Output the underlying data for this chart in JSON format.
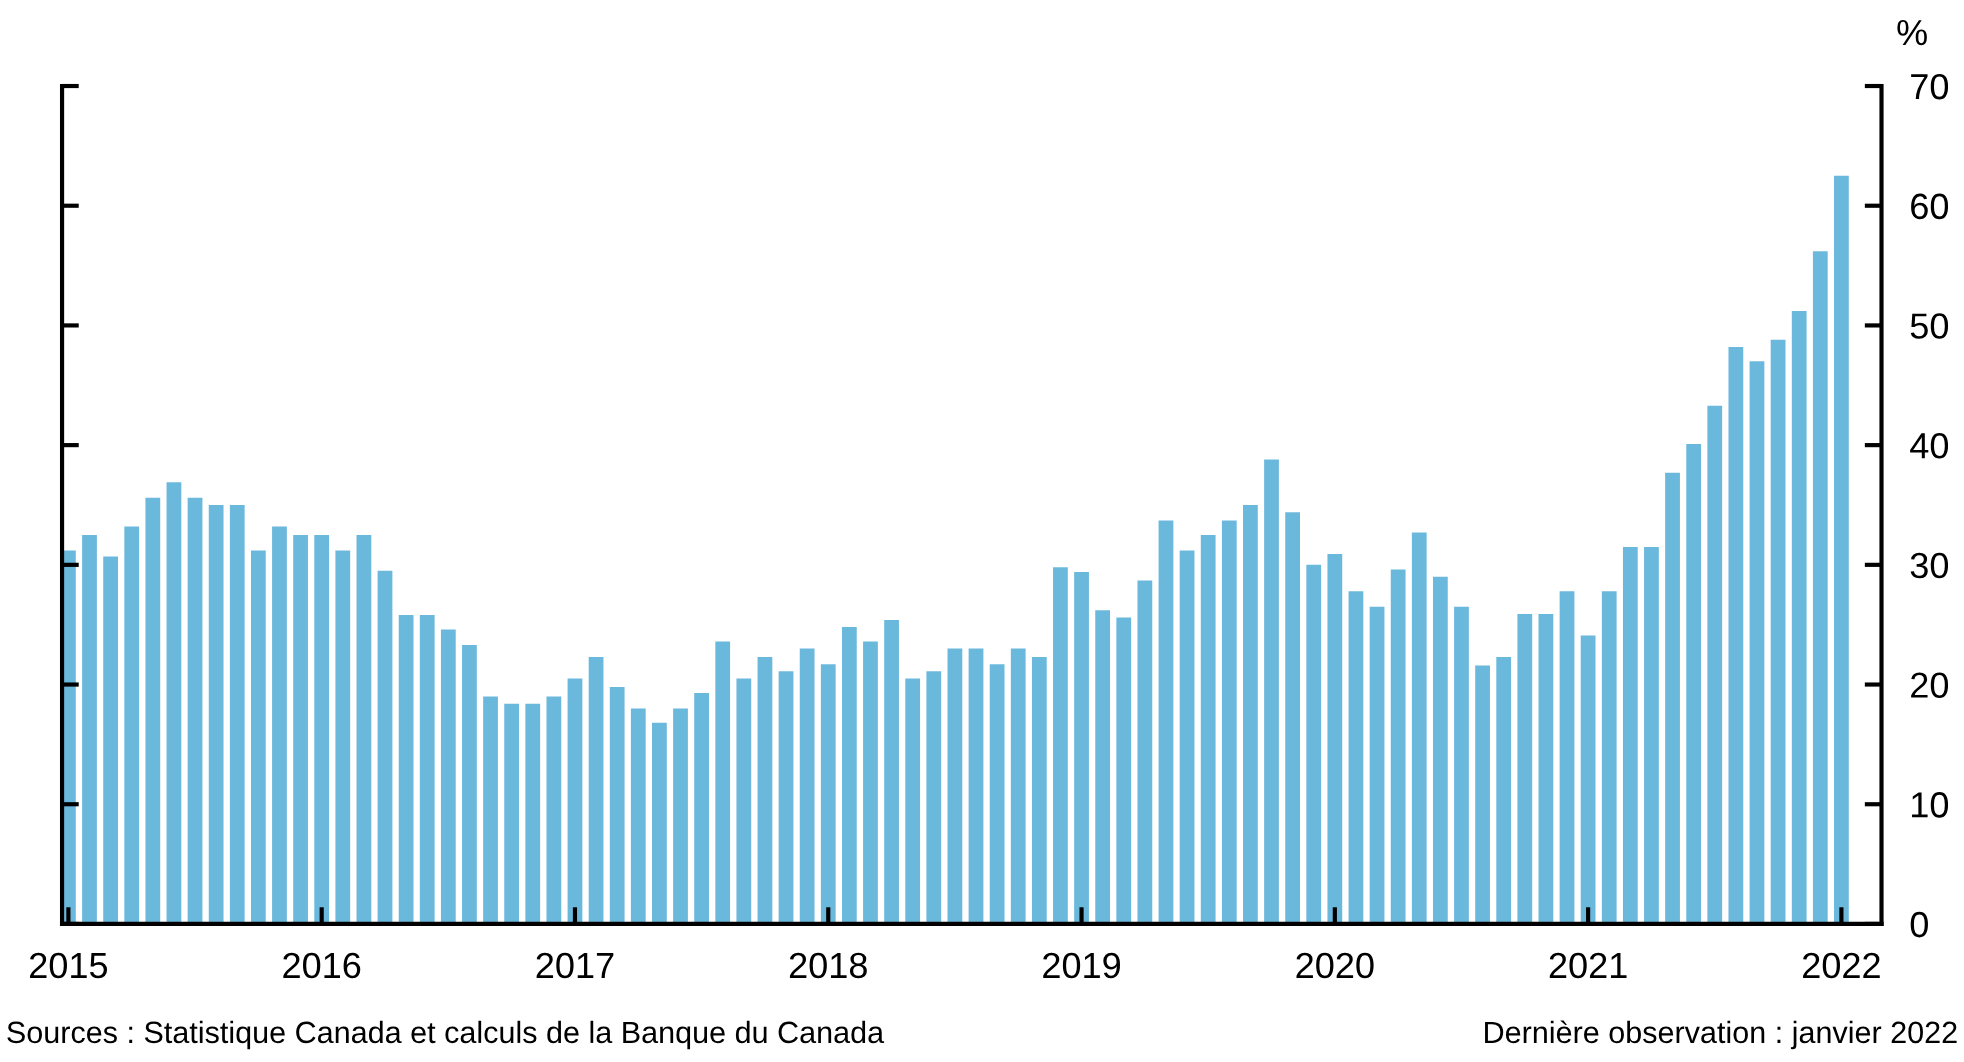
{
  "chart_data": {
    "type": "bar",
    "ylabel": "%",
    "categories": [
      "2015",
      null,
      null,
      null,
      null,
      null,
      null,
      null,
      null,
      null,
      null,
      null,
      "2016",
      null,
      null,
      null,
      null,
      null,
      null,
      null,
      null,
      null,
      null,
      null,
      "2017",
      null,
      null,
      null,
      null,
      null,
      null,
      null,
      null,
      null,
      null,
      null,
      "2018",
      null,
      null,
      null,
      null,
      null,
      null,
      null,
      null,
      null,
      null,
      null,
      "2019",
      null,
      null,
      null,
      null,
      null,
      null,
      null,
      null,
      null,
      null,
      null,
      "2020",
      null,
      null,
      null,
      null,
      null,
      null,
      null,
      null,
      null,
      null,
      null,
      "2021",
      null,
      null,
      null,
      null,
      null,
      null,
      null,
      null,
      null,
      null,
      null,
      "2022"
    ],
    "values": [
      31.2,
      32.5,
      30.7,
      33.2,
      35.6,
      36.9,
      35.6,
      35.0,
      35.0,
      31.2,
      33.2,
      32.5,
      32.5,
      31.2,
      32.5,
      29.5,
      25.8,
      25.8,
      24.6,
      23.3,
      19.0,
      18.4,
      18.4,
      19.0,
      20.5,
      22.3,
      19.8,
      18.0,
      16.8,
      18.0,
      19.3,
      23.6,
      20.5,
      22.3,
      21.1,
      23.0,
      21.7,
      24.8,
      23.6,
      25.4,
      20.5,
      21.1,
      23.0,
      23.0,
      21.7,
      23.0,
      22.3,
      29.8,
      29.4,
      26.2,
      25.6,
      28.7,
      33.7,
      31.2,
      32.5,
      33.7,
      35.0,
      38.8,
      34.4,
      30.0,
      30.9,
      27.8,
      26.5,
      29.6,
      32.7,
      29.0,
      26.5,
      21.6,
      22.3,
      25.9,
      25.9,
      27.8,
      24.1,
      27.8,
      31.5,
      31.5,
      37.7,
      40.1,
      43.3,
      48.2,
      47.0,
      48.8,
      51.2,
      56.2,
      62.5
    ],
    "color": "#6bb8dd",
    "ylim": [
      0,
      70
    ],
    "yticks": [
      0,
      10,
      20,
      30,
      40,
      50,
      60,
      70
    ],
    "grid": false,
    "annotations": [
      "Sources : Statistique Canada et calculs de la Banque du Canada",
      "Dernière observation : janvier 2022"
    ]
  }
}
